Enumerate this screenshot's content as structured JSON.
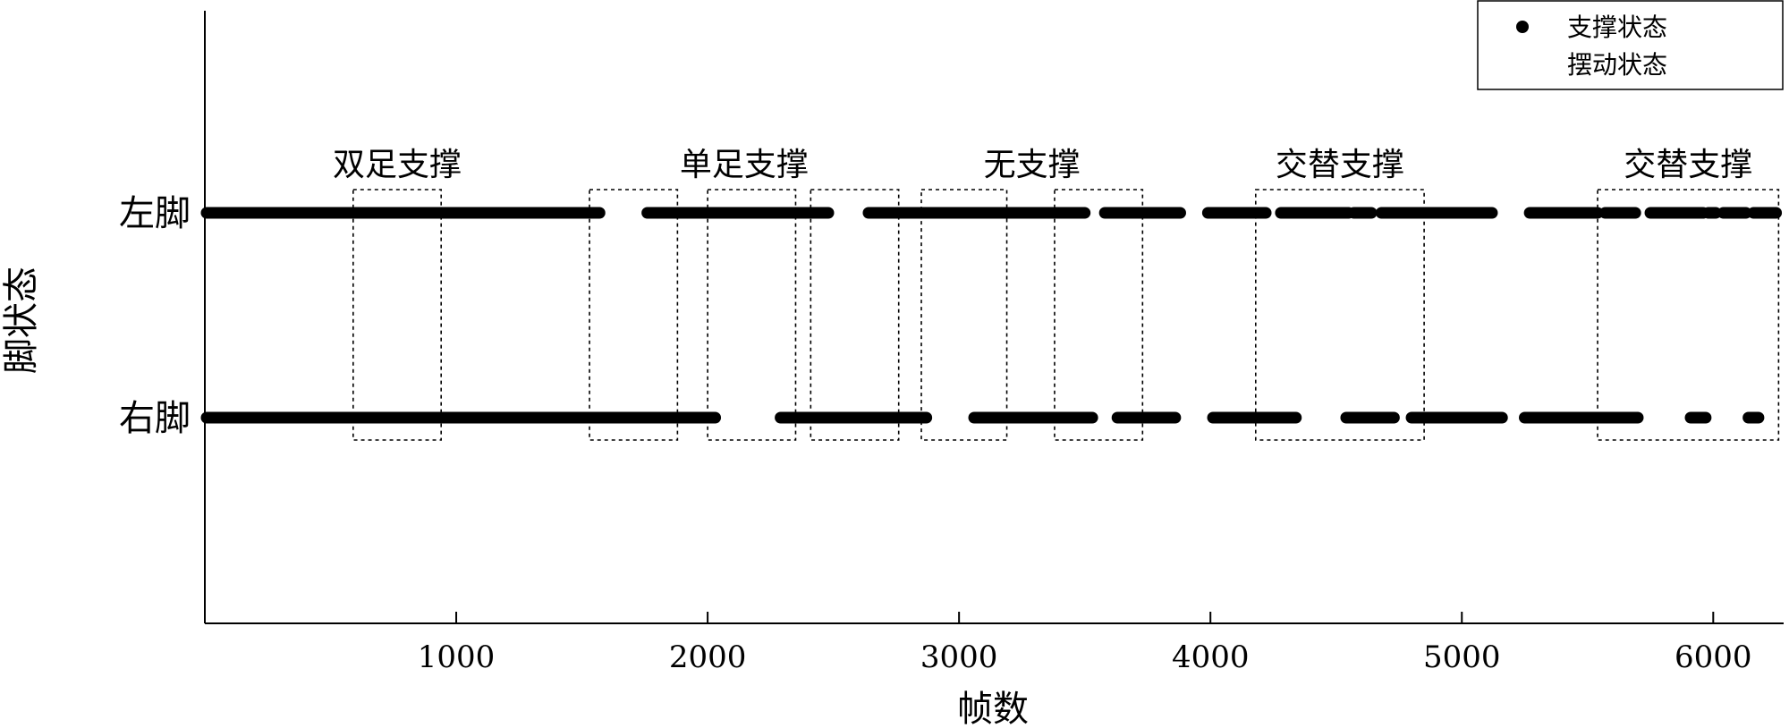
{
  "chart_data": {
    "type": "scatter",
    "xlabel": "帧数",
    "ylabel": "脚状态",
    "xlim": [
      0,
      6280
    ],
    "x_ticks": [
      1000,
      2000,
      3000,
      4000,
      5000,
      6000
    ],
    "y_categories": [
      "左脚",
      "右脚"
    ],
    "grid": false,
    "legend_position": "top-right",
    "legend": [
      "支撑状态",
      "摆动状态"
    ],
    "series": [
      {
        "name": "左脚",
        "state": "支撑状态",
        "segments": [
          [
            0,
            1570
          ],
          [
            1760,
            2480
          ],
          [
            2640,
            3500
          ],
          [
            3580,
            3880
          ],
          [
            3990,
            4220
          ],
          [
            4280,
            4550
          ],
          [
            4570,
            4640
          ],
          [
            4680,
            5120
          ],
          [
            5270,
            5540
          ],
          [
            5570,
            5690
          ],
          [
            5750,
            5960
          ],
          [
            5980,
            6010
          ],
          [
            6040,
            6130
          ],
          [
            6160,
            6250
          ]
        ]
      },
      {
        "name": "右脚",
        "state": "支撑状态",
        "segments": [
          [
            0,
            2030
          ],
          [
            2290,
            2870
          ],
          [
            3060,
            3530
          ],
          [
            3630,
            3860
          ],
          [
            4010,
            4340
          ],
          [
            4540,
            4730
          ],
          [
            4800,
            5160
          ],
          [
            5250,
            5700
          ],
          [
            5910,
            5970
          ],
          [
            6140,
            6180
          ]
        ]
      }
    ],
    "annotations": [
      {
        "label": "双足支撑",
        "boxes": [
          [
            590,
            940
          ]
        ]
      },
      {
        "label": "单足支撑",
        "boxes": [
          [
            1530,
            1880
          ],
          [
            2000,
            2350
          ],
          [
            2410,
            2760
          ]
        ]
      },
      {
        "label": "无支撑",
        "boxes": [
          [
            2850,
            3190
          ],
          [
            3380,
            3730
          ]
        ]
      },
      {
        "label": "交替支撑",
        "boxes": [
          [
            4180,
            4850
          ]
        ]
      },
      {
        "label": "交替支撑",
        "boxes": [
          [
            5540,
            6260
          ]
        ]
      }
    ]
  }
}
